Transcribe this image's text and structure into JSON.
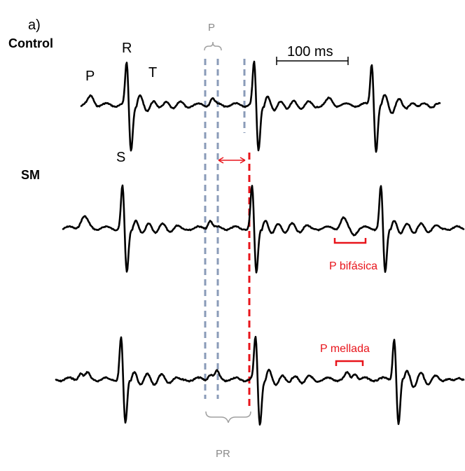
{
  "figure": {
    "panel_label": "a)",
    "groups": {
      "control": "Control",
      "sm": "SM"
    },
    "wave_labels": {
      "p": "P",
      "r": "R",
      "s": "S",
      "t": "T"
    },
    "scale_bar": "100 ms",
    "interval_labels": {
      "p_top": "P",
      "pr_bottom": "PR"
    },
    "annotations": {
      "biphasic": "P bifásica",
      "notched": "P mellada"
    },
    "colors": {
      "trace": "#000000",
      "dashed_p": "#8a9bb8",
      "dashed_pr": "#e8141b",
      "annotation": "#e8141b",
      "bracket_gray": "#a0a0a0"
    }
  }
}
